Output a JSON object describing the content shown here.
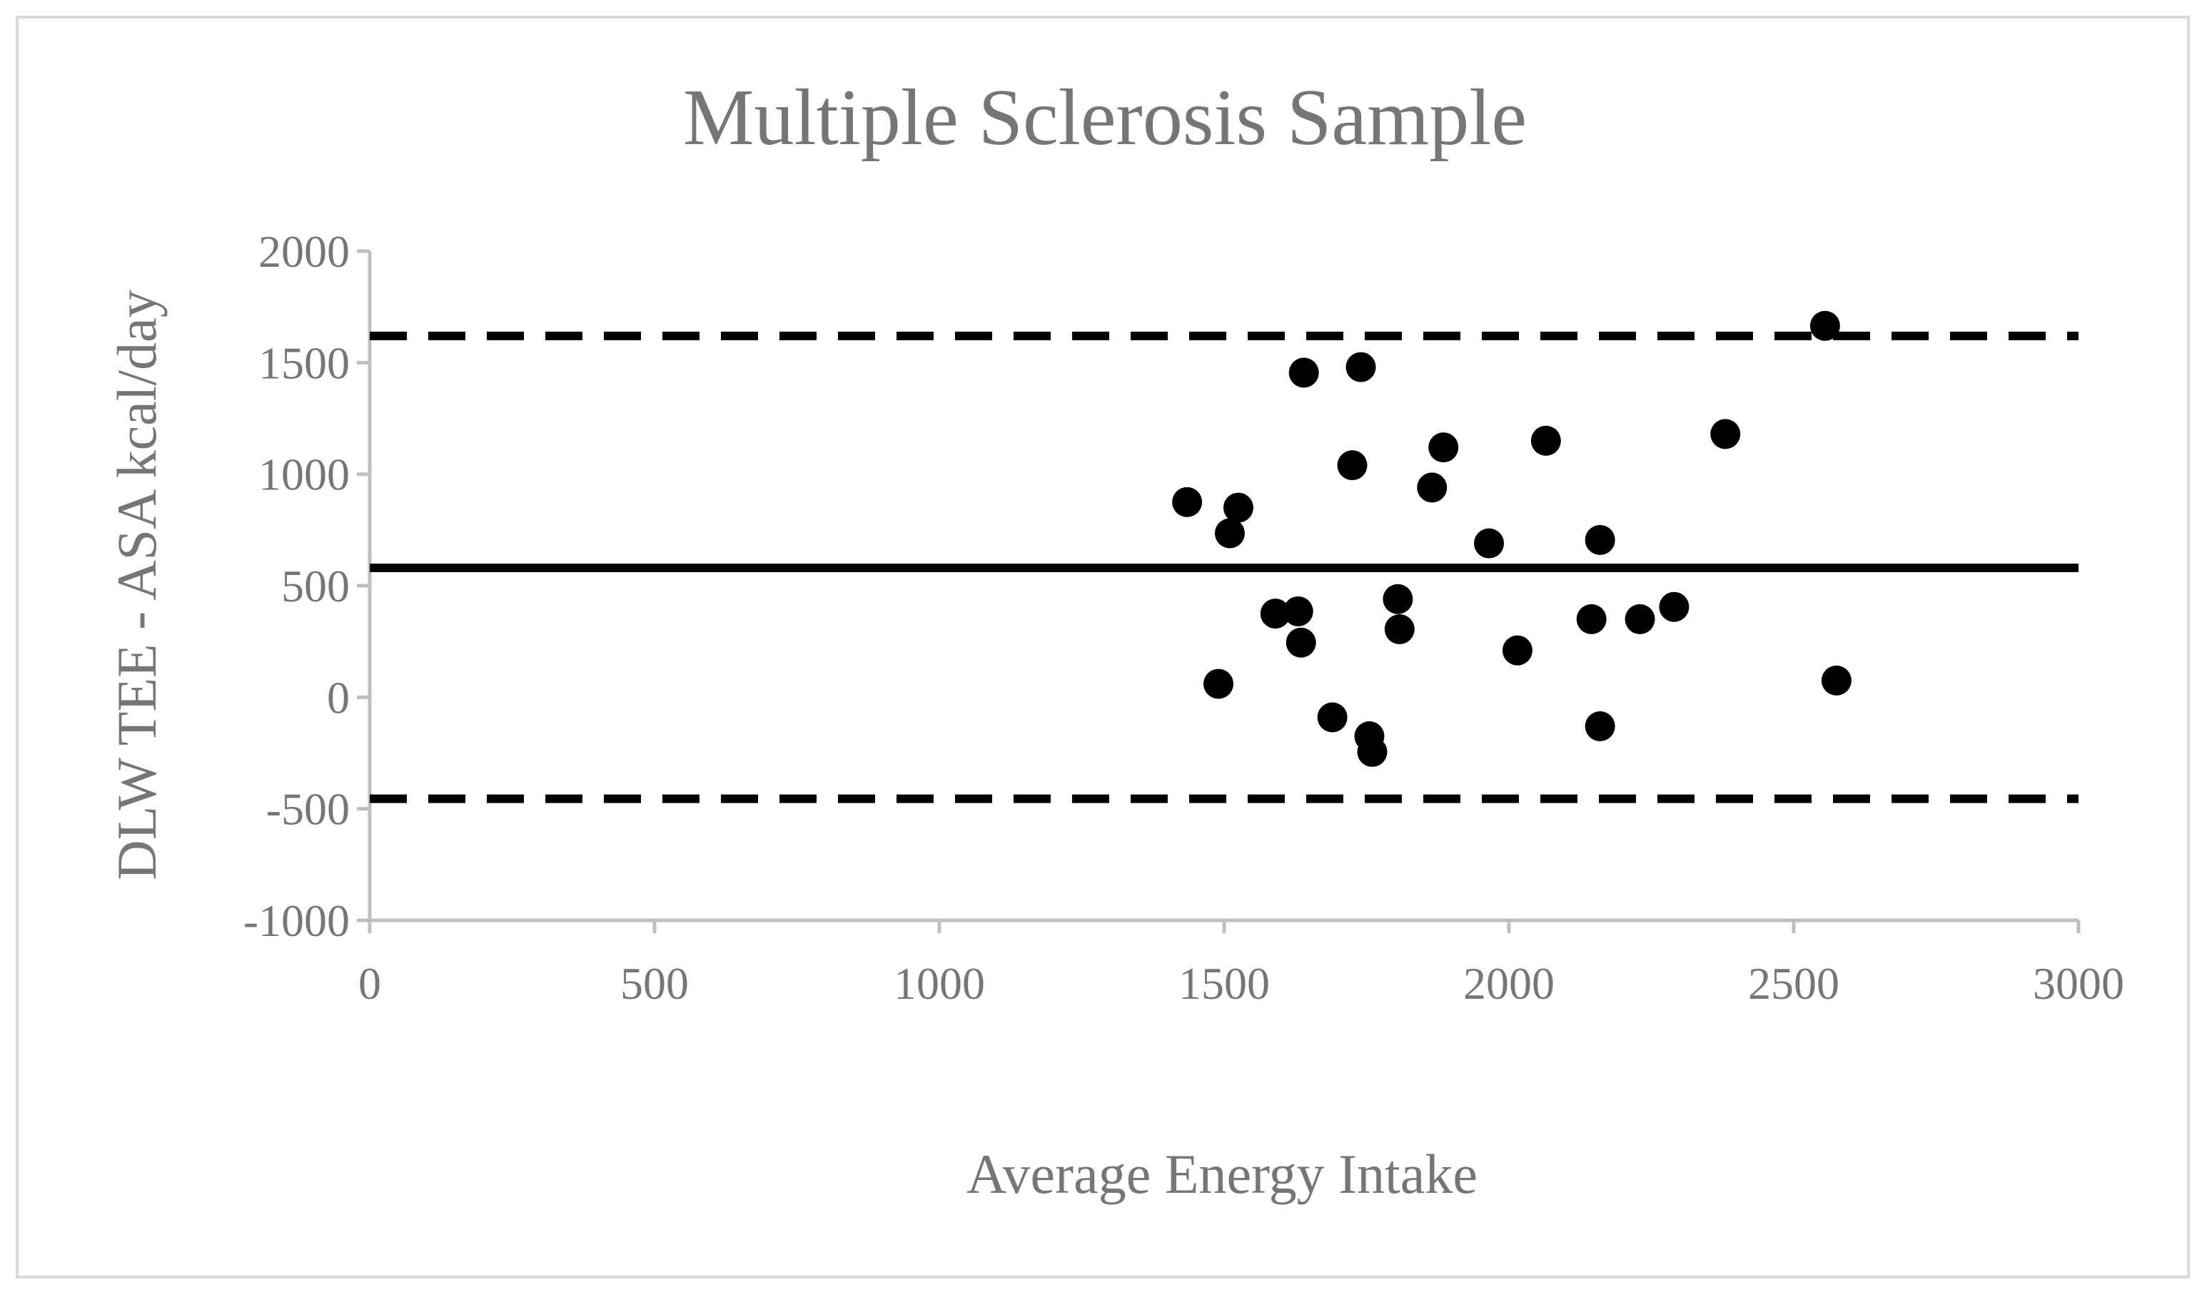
{
  "chart_data": {
    "type": "scatter",
    "title": "Multiple Sclerosis Sample",
    "xlabel": "Average Energy Intake",
    "ylabel": "DLW TEE - ASA kcal/day",
    "xlim": [
      0,
      3000
    ],
    "ylim": [
      -1000,
      2000
    ],
    "x_ticks": [
      0,
      500,
      1000,
      1500,
      2000,
      2500,
      3000
    ],
    "y_ticks": [
      -1000,
      -500,
      0,
      500,
      1000,
      1500,
      2000
    ],
    "x_tick_labels": [
      "0",
      "500",
      "1000",
      "1500",
      "2000",
      "2500",
      "3000"
    ],
    "y_tick_labels": [
      "-1000",
      "-500",
      "0",
      "500",
      "1000",
      "1500",
      "2000"
    ],
    "grid": false,
    "mean_line": 580,
    "upper_limit": 1620,
    "lower_limit": -455,
    "colors": {
      "points": "#000000",
      "lines": "#000000",
      "text": "#767676",
      "axis": "#bfbfbf"
    },
    "points": [
      {
        "x": 1435,
        "y": 875
      },
      {
        "x": 1510,
        "y": 735
      },
      {
        "x": 1525,
        "y": 850
      },
      {
        "x": 1490,
        "y": 60
      },
      {
        "x": 1590,
        "y": 375
      },
      {
        "x": 1630,
        "y": 385
      },
      {
        "x": 1635,
        "y": 245
      },
      {
        "x": 1640,
        "y": 1455
      },
      {
        "x": 1690,
        "y": -90
      },
      {
        "x": 1725,
        "y": 1040
      },
      {
        "x": 1740,
        "y": 1480
      },
      {
        "x": 1755,
        "y": -175
      },
      {
        "x": 1760,
        "y": -245
      },
      {
        "x": 1805,
        "y": 440
      },
      {
        "x": 1808,
        "y": 305
      },
      {
        "x": 1865,
        "y": 940
      },
      {
        "x": 1885,
        "y": 1120
      },
      {
        "x": 1965,
        "y": 690
      },
      {
        "x": 2015,
        "y": 210
      },
      {
        "x": 2065,
        "y": 1150
      },
      {
        "x": 2145,
        "y": 350
      },
      {
        "x": 2160,
        "y": 705
      },
      {
        "x": 2160,
        "y": -130
      },
      {
        "x": 2230,
        "y": 350
      },
      {
        "x": 2290,
        "y": 405
      },
      {
        "x": 2380,
        "y": 1180
      },
      {
        "x": 2555,
        "y": 1665
      },
      {
        "x": 2575,
        "y": 75
      }
    ]
  }
}
